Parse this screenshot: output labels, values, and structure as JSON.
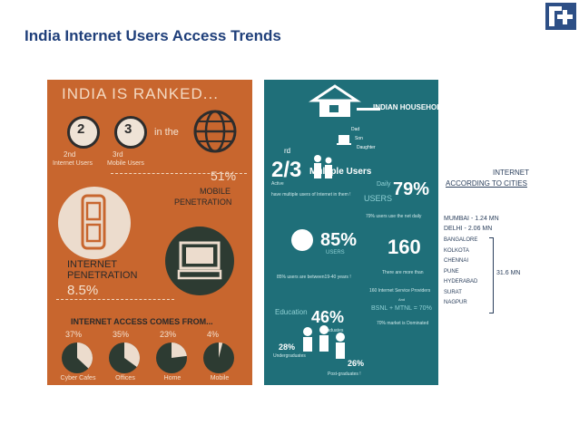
{
  "slide": {
    "title": "India Internet Users Access Trends",
    "logo": "company-logo",
    "colors": {
      "title": "#1f3f7a",
      "left_panel": "#c8662e",
      "right_panel": "#1f6f79"
    }
  },
  "left_panel": {
    "heading": "INDIA IS RANKED...",
    "rank_internet": {
      "rank": "2",
      "label": "2nd",
      "caption": "Internet Users"
    },
    "rank_mobile": {
      "rank": "3",
      "label": "3rd",
      "caption": "Mobile Users"
    },
    "in_the": "in the",
    "mobile_penetration": {
      "value": "51%",
      "label1": "MOBILE",
      "label2": "PENETRATION"
    },
    "internet_penetration": {
      "label1": "INTERNET",
      "label2": "PENETRATION",
      "value": "8.5%"
    },
    "access_heading": "INTERNET ACCESS COMES FROM...",
    "access": [
      {
        "pct": "37%",
        "label": "Cyber Cafes",
        "share": 0.37
      },
      {
        "pct": "35%",
        "label": "Offices",
        "share": 0.35
      },
      {
        "pct": "23%",
        "label": "Home",
        "share": 0.23
      },
      {
        "pct": "4%",
        "label": "Mobile",
        "share": 0.04
      }
    ]
  },
  "right_panel": {
    "household_label": "INDIAN HOUSEHOLD",
    "family": [
      "Dad",
      "Son",
      "Daughter"
    ],
    "fraction": "2/3",
    "fraction_sup": "rd",
    "fraction_label": "Multiple Users",
    "fraction_note": "have multiple users of Internet in them !",
    "tag_line": "Active",
    "users_word": "Daily",
    "users_word2": "USERS",
    "daily_pct": "79%",
    "daily_note": "79% users use the net daily",
    "age_pct": "85%",
    "age_word": "USERS",
    "age_note": "85% users are between19-40 years !",
    "isp_count": "160",
    "isp_note1": "There are more than",
    "isp_note2": "160 Internet Service Providers",
    "isp_and": "And",
    "isp_market": "BSNL + MTNL = 70%",
    "isp_market_note": "70% market is Dominated",
    "education_label": "Education",
    "graduates_pct": "46%",
    "graduates_label": "Graduates",
    "undergrad_pct": "28%",
    "undergrad_label": "Undergraduates",
    "postgrad_pct": "26%",
    "postgrad_label": "Post-graduates !"
  },
  "cities_panel": {
    "heading1": "INTERNET",
    "heading2": "ACCORDING TO CITIES",
    "mumbai": "MUMBAI - 1.24 MN",
    "delhi": "DELHI - 2.06 MN",
    "group": [
      "BANGALORE",
      "KOLKOTA",
      "CHENNAI",
      "PUNE",
      "HYDERABAD",
      "SURAT",
      "NAGPUR"
    ],
    "group_total": "31.6 MN"
  }
}
